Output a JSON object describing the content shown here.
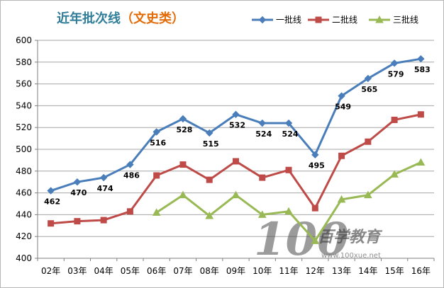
{
  "chart_data": {
    "type": "line",
    "title": "近年批次线",
    "title_suffix": "（文史类）",
    "categories": [
      "02年",
      "03年",
      "04年",
      "05年",
      "06年",
      "07年",
      "08年",
      "09年",
      "10年",
      "11年",
      "12年",
      "13年",
      "14年",
      "15年",
      "16年"
    ],
    "ylim": [
      400,
      600
    ],
    "yticks": [
      400,
      420,
      440,
      460,
      480,
      500,
      520,
      540,
      560,
      580,
      600
    ],
    "grid": true,
    "legend_position": "top-right",
    "series": [
      {
        "name": "一批线",
        "color": "#4a7ebb",
        "marker": "diamond",
        "labeled": true,
        "values": [
          462,
          470,
          474,
          486,
          516,
          528,
          515,
          532,
          524,
          524,
          495,
          549,
          565,
          579,
          583
        ]
      },
      {
        "name": "二批线",
        "color": "#be4b48",
        "marker": "square",
        "labeled": false,
        "values": [
          432,
          434,
          435,
          443,
          476,
          486,
          472,
          489,
          474,
          481,
          446,
          494,
          507,
          527,
          532
        ]
      },
      {
        "name": "三批线",
        "color": "#98b954",
        "marker": "triangle",
        "labeled": false,
        "values": [
          null,
          null,
          null,
          null,
          442,
          458,
          439,
          458,
          440,
          443,
          416,
          454,
          458,
          477,
          488
        ]
      }
    ]
  },
  "watermark": {
    "number": "100",
    "brand": "百学教育",
    "url": "www.100xue.net"
  }
}
